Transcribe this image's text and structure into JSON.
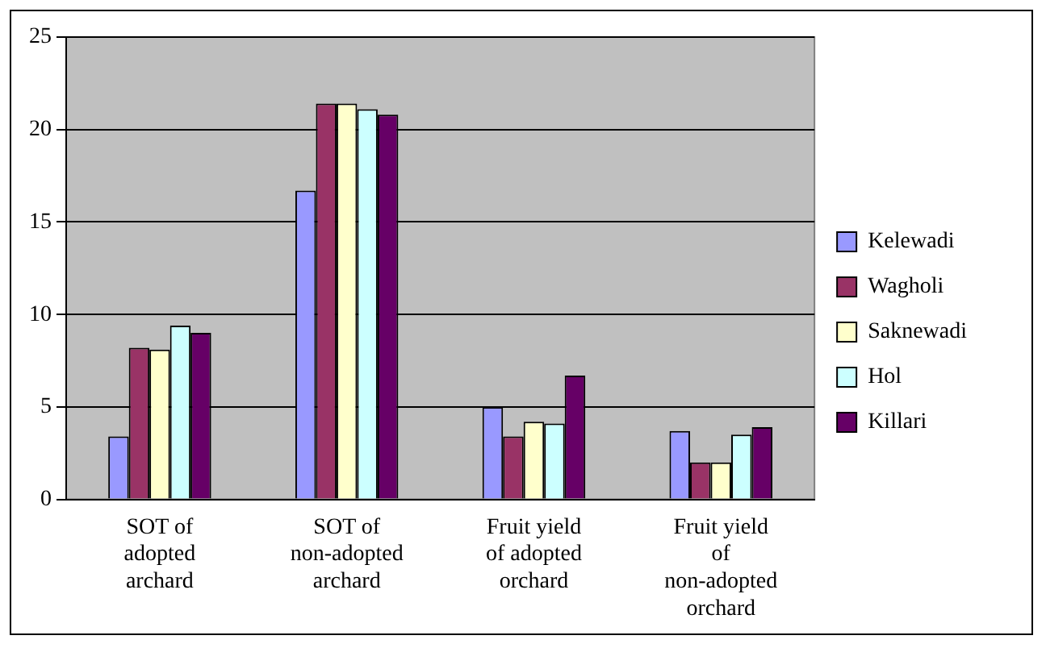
{
  "chart_data": {
    "type": "bar",
    "categories": [
      "SOT of adopted archard",
      "SOT of non-adopted archard",
      "Fruit yield of adopted orchard",
      "Fruit yield of non-adopted orchard"
    ],
    "series": [
      {
        "name": "Kelewadi",
        "color": "#9999ff",
        "values": [
          3.4,
          16.7,
          5.0,
          3.7
        ]
      },
      {
        "name": "Wagholi",
        "color": "#993366",
        "values": [
          8.2,
          21.4,
          3.4,
          2.0
        ]
      },
      {
        "name": "Saknewadi",
        "color": "#ffffcc",
        "values": [
          8.1,
          21.4,
          4.2,
          2.0
        ]
      },
      {
        "name": "Hol",
        "color": "#ccffff",
        "values": [
          9.4,
          21.1,
          4.1,
          3.5
        ]
      },
      {
        "name": "Killari",
        "color": "#660066",
        "values": [
          9.0,
          20.8,
          6.7,
          3.9
        ]
      }
    ],
    "ylim": [
      0,
      25
    ],
    "yticks": [
      0,
      5,
      10,
      15,
      20,
      25
    ],
    "grid": "y",
    "legend": "right"
  }
}
